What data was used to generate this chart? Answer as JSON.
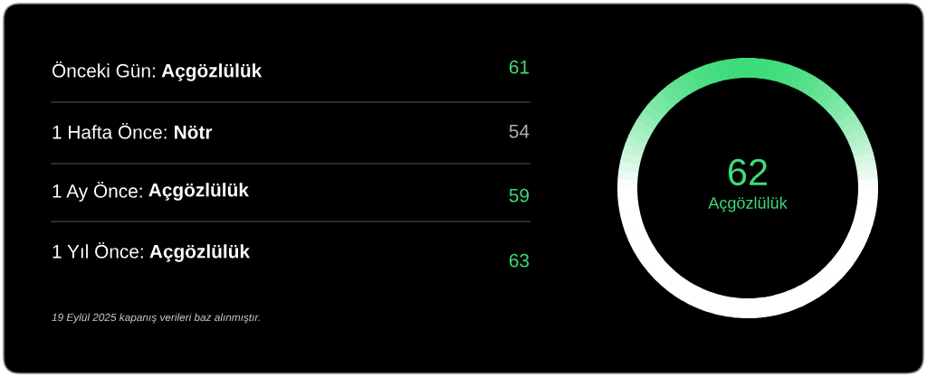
{
  "chart_data": {
    "type": "other",
    "categories": [
      "Önceki Gün: Açgözlülük",
      "1 Hafta Önce: Nötr",
      "1 Ay Önce: Açgözlülük",
      "1 Yıl Önce: Açgözlülük"
    ],
    "values": [
      61,
      54,
      59,
      63
    ],
    "data_labels": true,
    "colors": [
      "#3ddc7a",
      "#b0b0b0",
      "#3ddc7a",
      "#3ddc7a"
    ],
    "annotations": [
      "62",
      "Açgözlülük",
      "19 Eylül 2025 kapanış verileri baz alınmıştır."
    ]
  }
}
